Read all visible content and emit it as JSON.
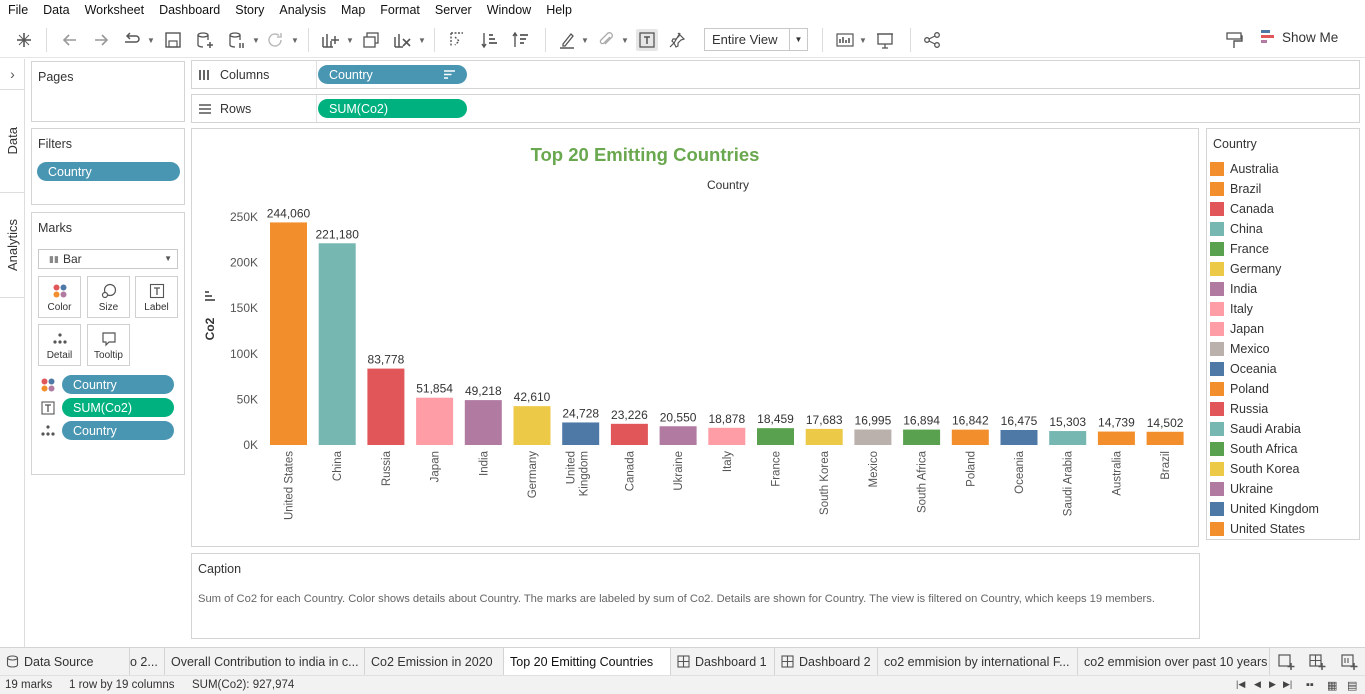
{
  "menu": [
    "File",
    "Data",
    "Worksheet",
    "Dashboard",
    "Story",
    "Analysis",
    "Map",
    "Format",
    "Server",
    "Window",
    "Help"
  ],
  "toolbar": {
    "fit_value": "Entire View",
    "show_me_label": "Show Me",
    "icons": [
      "tableau-logo-icon",
      "back-icon",
      "forward-icon",
      "redo-icon",
      "save-icon",
      "new-datasource-icon",
      "pause-updates-icon",
      "refresh-icon",
      "new-worksheet-icon",
      "duplicate-sheet-icon",
      "clear-sheet-icon",
      "swap-icon",
      "sort-ascending-icon",
      "sort-descending-icon",
      "highlight-icon",
      "group-icon",
      "show-labels-icon",
      "pin-icon",
      "fit-icon",
      "presentation-icon",
      "share-icon",
      "format-painter-icon"
    ]
  },
  "sidetabs": {
    "data": "Data",
    "analytics": "Analytics"
  },
  "pages": {
    "title": "Pages"
  },
  "filters": {
    "title": "Filters",
    "pills": [
      "Country"
    ]
  },
  "marks": {
    "title": "Marks",
    "type": "Bar",
    "buttons": {
      "color": "Color",
      "size": "Size",
      "label": "Label",
      "detail": "Detail",
      "tooltip": "Tooltip"
    },
    "fields": [
      {
        "icon": "color-icon",
        "label": "Country",
        "color": "#4996b2"
      },
      {
        "icon": "label-icon",
        "label": "SUM(Co2)",
        "color": "#00b180"
      },
      {
        "icon": "detail-icon",
        "label": "Country",
        "color": "#4996b2"
      }
    ]
  },
  "shelves": {
    "columns": {
      "label": "Columns",
      "pill": "Country"
    },
    "rows": {
      "label": "Rows",
      "pill": "SUM(Co2)"
    }
  },
  "legend": {
    "title": "Country",
    "items": [
      {
        "label": "Australia",
        "color": "#f28e2b"
      },
      {
        "label": "Brazil",
        "color": "#f28e2b"
      },
      {
        "label": "Canada",
        "color": "#e15759"
      },
      {
        "label": "China",
        "color": "#76b7b2"
      },
      {
        "label": "France",
        "color": "#59a14f"
      },
      {
        "label": "Germany",
        "color": "#edc948"
      },
      {
        "label": "India",
        "color": "#b07aa1"
      },
      {
        "label": "Italy",
        "color": "#ff9da7"
      },
      {
        "label": "Japan",
        "color": "#ff9da7"
      },
      {
        "label": "Mexico",
        "color": "#bab0ac"
      },
      {
        "label": "Oceania",
        "color": "#4e79a7"
      },
      {
        "label": "Poland",
        "color": "#f28e2b"
      },
      {
        "label": "Russia",
        "color": "#e15759"
      },
      {
        "label": "Saudi Arabia",
        "color": "#76b7b2"
      },
      {
        "label": "South Africa",
        "color": "#59a14f"
      },
      {
        "label": "South Korea",
        "color": "#edc948"
      },
      {
        "label": "Ukraine",
        "color": "#b07aa1"
      },
      {
        "label": "United Kingdom",
        "color": "#4e79a7"
      },
      {
        "label": "United States",
        "color": "#f28e2b"
      }
    ]
  },
  "chart_data": {
    "type": "bar",
    "title": "Top 20 Emitting Countries",
    "xlabel": "Country",
    "ylabel": "Co2",
    "ylim": [
      0,
      250000
    ],
    "yticks": [
      0,
      50000,
      100000,
      150000,
      200000,
      250000
    ],
    "ytick_labels": [
      "0K",
      "50K",
      "100K",
      "150K",
      "200K",
      "250K"
    ],
    "grid": false,
    "categories": [
      "United States",
      "China",
      "Russia",
      "Japan",
      "India",
      "Germany",
      "United Kingdom",
      "Canada",
      "Ukraine",
      "Italy",
      "France",
      "South Korea",
      "Mexico",
      "South Africa",
      "Poland",
      "Oceania",
      "Saudi Arabia",
      "Australia",
      "Brazil"
    ],
    "values": [
      244060,
      221180,
      83778,
      51854,
      49218,
      42610,
      24728,
      23226,
      20550,
      18878,
      18459,
      17683,
      16995,
      16894,
      16842,
      16475,
      15303,
      14739,
      14502
    ],
    "value_labels": [
      "244,060",
      "221,180",
      "83,778",
      "51,854",
      "49,218",
      "42,610",
      "24,728",
      "23,226",
      "20,550",
      "18,878",
      "18,459",
      "17,683",
      "16,995",
      "16,894",
      "16,842",
      "16,475",
      "15,303",
      "14,739",
      "14,502"
    ],
    "colors": [
      "#f28e2b",
      "#76b7b2",
      "#e15759",
      "#ff9da7",
      "#b07aa1",
      "#edc948",
      "#4e79a7",
      "#e15759",
      "#b07aa1",
      "#ff9da7",
      "#59a14f",
      "#edc948",
      "#bab0ac",
      "#59a14f",
      "#f28e2b",
      "#4e79a7",
      "#76b7b2",
      "#f28e2b",
      "#f28e2b"
    ]
  },
  "caption": {
    "title": "Caption",
    "text": "Sum of Co2 for each Country.  Color shows details about Country.  The marks are labeled by sum of Co2.  Details are shown for Country. The view is filtered on Country, which keeps 19 members."
  },
  "tabs": {
    "data_source": "Data Source",
    "sheets": [
      {
        "label": "o 2...",
        "kind": "sheet"
      },
      {
        "label": "Overall Contribution to india in c...",
        "kind": "sheet"
      },
      {
        "label": "Co2 Emission in 2020",
        "kind": "sheet"
      },
      {
        "label": "Top 20 Emitting Countries",
        "kind": "sheet",
        "active": true
      },
      {
        "label": "Dashboard 1",
        "kind": "dashboard"
      },
      {
        "label": "Dashboard 2",
        "kind": "dashboard"
      },
      {
        "label": "co2 emmision by international F...",
        "kind": "sheet"
      },
      {
        "label": "co2 emmision over past 10 years",
        "kind": "sheet"
      }
    ]
  },
  "status": {
    "marks": "19 marks",
    "dims": "1 row by 19 columns",
    "sum": "SUM(Co2): 927,974"
  }
}
